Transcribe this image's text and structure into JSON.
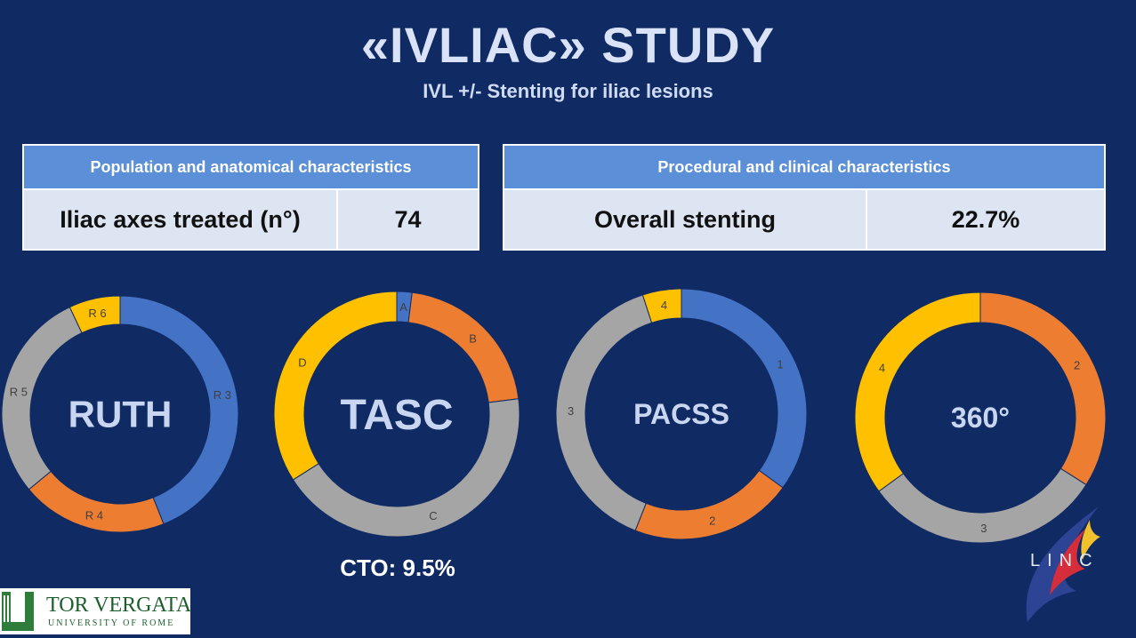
{
  "title": "«IVLIAC» STUDY",
  "subtitle": "IVL +/- Stenting for iliac lesions",
  "tables": {
    "left": {
      "header": "Population  and anatomical characteristics",
      "label": "Iliac axes treated (n°)",
      "value": "74"
    },
    "right": {
      "header": "Procedural and clinical characteristics",
      "label": "Overall stenting",
      "value": "22.7%"
    }
  },
  "cto": "CTO: 9.5%",
  "colors": {
    "blue": "#4472c4",
    "orange": "#ed7d31",
    "gray": "#a5a5a5",
    "yellow": "#ffc000",
    "background": "#102a63"
  },
  "chart_data": [
    {
      "type": "pie",
      "center_label": "RUTH",
      "categories": [
        "R 3",
        "R 4",
        "R 5",
        "R 6"
      ],
      "values": [
        44,
        20,
        29,
        7
      ],
      "colors": [
        "#4472c4",
        "#ed7d31",
        "#a5a5a5",
        "#ffc000"
      ]
    },
    {
      "type": "pie",
      "center_label": "TASC",
      "categories": [
        "A",
        "B",
        "C",
        "D"
      ],
      "values": [
        2,
        21,
        43,
        34
      ],
      "colors": [
        "#4472c4",
        "#ed7d31",
        "#a5a5a5",
        "#ffc000"
      ]
    },
    {
      "type": "pie",
      "center_label": "PACSS",
      "categories": [
        "1",
        "2",
        "3",
        "4"
      ],
      "values": [
        35,
        21,
        39,
        5
      ],
      "colors": [
        "#4472c4",
        "#ed7d31",
        "#a5a5a5",
        "#ffc000"
      ]
    },
    {
      "type": "pie",
      "center_label": "360°",
      "categories": [
        "2",
        "3",
        "4"
      ],
      "values": [
        34,
        31,
        35
      ],
      "colors": [
        "#ed7d31",
        "#a5a5a5",
        "#ffc000"
      ]
    }
  ],
  "logos": {
    "university_name": "TOR VERGATA",
    "university_sub": "UNIVERSITY OF ROME",
    "conference": "LINC"
  }
}
